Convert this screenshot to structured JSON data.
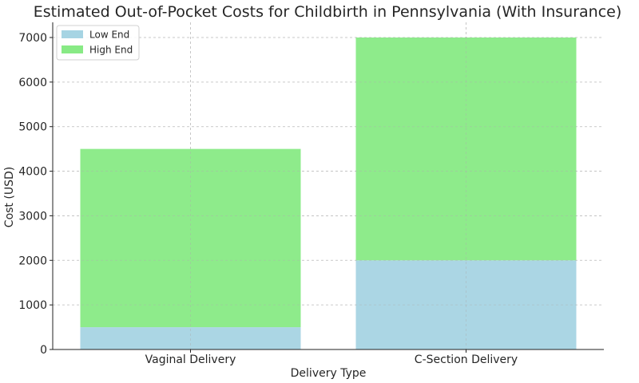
{
  "chart_data": {
    "type": "bar",
    "stacked": true,
    "title": "Estimated Out-of-Pocket Costs for Childbirth in Pennsylvania (With Insurance)",
    "xlabel": "Delivery Type",
    "ylabel": "Cost (USD)",
    "categories": [
      "Vaginal Delivery",
      "C-Section Delivery"
    ],
    "series": [
      {
        "name": "Low End",
        "values": [
          500,
          2000
        ],
        "color": "#a6d4e3"
      },
      {
        "name": "High End",
        "values": [
          4000,
          5000
        ],
        "color": "#88ea85"
      }
    ],
    "ylim": [
      0,
      7000
    ],
    "yticks": [
      0,
      1000,
      2000,
      3000,
      4000,
      5000,
      6000,
      7000
    ],
    "grid": true,
    "legend_position": "top-left"
  }
}
